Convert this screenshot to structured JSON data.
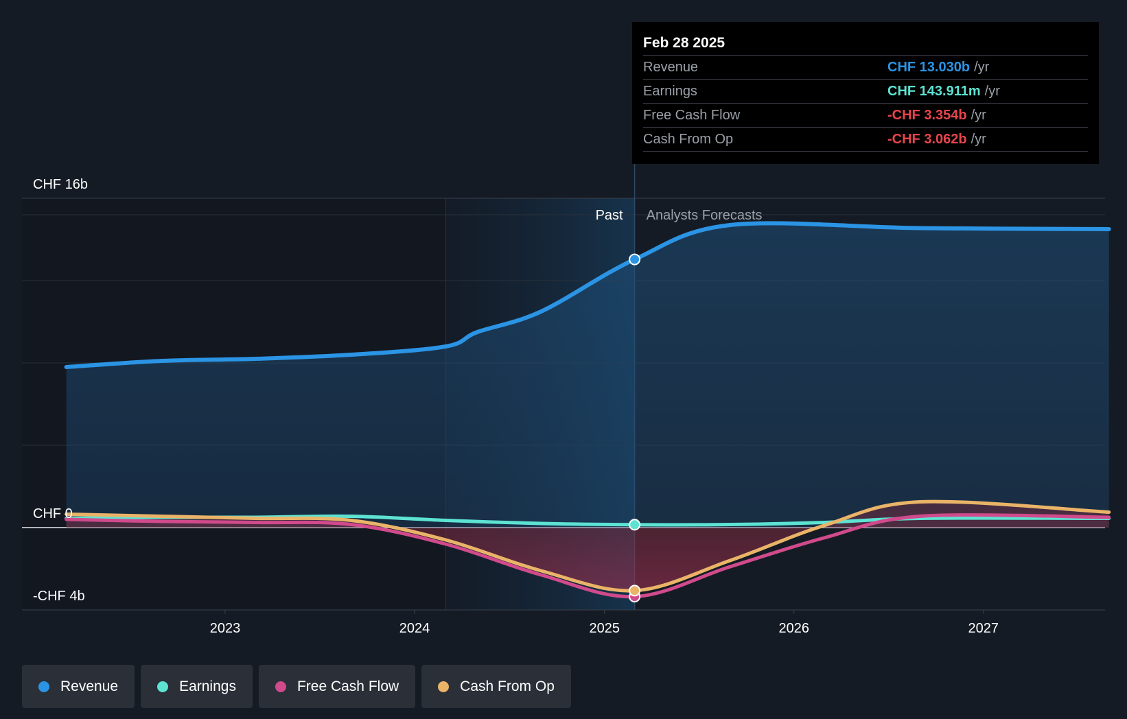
{
  "colors": {
    "revenue": "#2b94e4",
    "earnings": "#5de3d2",
    "free_cash_flow": "#d04a8c",
    "cash_from_op": "#eab468",
    "negative": "#e8454d",
    "background": "#151b24"
  },
  "tooltip": {
    "date": "Feb 28 2025",
    "rows": [
      {
        "label": "Revenue",
        "value": "CHF 13.030b",
        "unit": "/yr"
      },
      {
        "label": "Earnings",
        "value": "CHF 143.911m",
        "unit": "/yr"
      },
      {
        "label": "Free Cash Flow",
        "value": "-CHF 3.354b",
        "unit": "/yr"
      },
      {
        "label": "Cash From Op",
        "value": "-CHF 3.062b",
        "unit": "/yr"
      }
    ]
  },
  "legend": [
    "Revenue",
    "Earnings",
    "Free Cash Flow",
    "Cash From Op"
  ],
  "chart_data": {
    "type": "line",
    "y_tick_labels": [
      "CHF 16b",
      "CHF 0",
      "-CHF 4b"
    ],
    "x_tick_labels": [
      "2023",
      "2024",
      "2025",
      "2026",
      "2027"
    ],
    "period_labels": {
      "past": "Past",
      "forecast": "Analysts Forecasts"
    },
    "ylim": [
      -4,
      16
    ],
    "past_end": "2025-02-28",
    "series": [
      {
        "name": "Revenue",
        "points": [
          [
            "2022-03-01",
            7.8
          ],
          [
            "2022-09-01",
            8.1
          ],
          [
            "2023-03-01",
            8.2
          ],
          [
            "2023-09-01",
            8.4
          ],
          [
            "2024-03-01",
            8.8
          ],
          [
            "2024-05-01",
            9.5
          ],
          [
            "2024-09-01",
            10.5
          ],
          [
            "2025-02-28",
            13.03
          ],
          [
            "2025-08-31",
            14.7
          ],
          [
            "2026-08-31",
            14.55
          ],
          [
            "2027-08-31",
            14.5
          ]
        ]
      },
      {
        "name": "Earnings",
        "points": [
          [
            "2022-03-01",
            0.45
          ],
          [
            "2022-09-01",
            0.5
          ],
          [
            "2023-03-01",
            0.5
          ],
          [
            "2023-09-01",
            0.55
          ],
          [
            "2024-03-01",
            0.35
          ],
          [
            "2024-09-01",
            0.2
          ],
          [
            "2025-02-28",
            0.14
          ],
          [
            "2025-08-31",
            0.15
          ],
          [
            "2026-02-28",
            0.25
          ],
          [
            "2026-08-31",
            0.45
          ],
          [
            "2027-08-31",
            0.45
          ]
        ]
      },
      {
        "name": "Free Cash Flow",
        "points": [
          [
            "2022-03-01",
            0.4
          ],
          [
            "2022-09-01",
            0.3
          ],
          [
            "2023-03-01",
            0.25
          ],
          [
            "2023-09-01",
            0.15
          ],
          [
            "2024-03-01",
            -0.8
          ],
          [
            "2024-09-01",
            -2.3
          ],
          [
            "2025-02-28",
            -3.354
          ],
          [
            "2025-08-31",
            -1.9
          ],
          [
            "2026-02-28",
            -0.5
          ],
          [
            "2026-08-31",
            0.55
          ],
          [
            "2027-08-31",
            0.5
          ]
        ]
      },
      {
        "name": "Cash From Op",
        "points": [
          [
            "2022-03-01",
            0.65
          ],
          [
            "2022-09-01",
            0.55
          ],
          [
            "2023-03-01",
            0.45
          ],
          [
            "2023-09-01",
            0.35
          ],
          [
            "2024-03-01",
            -0.6
          ],
          [
            "2024-09-01",
            -2.1
          ],
          [
            "2025-02-28",
            -3.062
          ],
          [
            "2025-08-31",
            -1.6
          ],
          [
            "2026-02-28",
            0.1
          ],
          [
            "2026-08-31",
            1.25
          ],
          [
            "2027-08-31",
            0.75
          ]
        ]
      }
    ]
  }
}
